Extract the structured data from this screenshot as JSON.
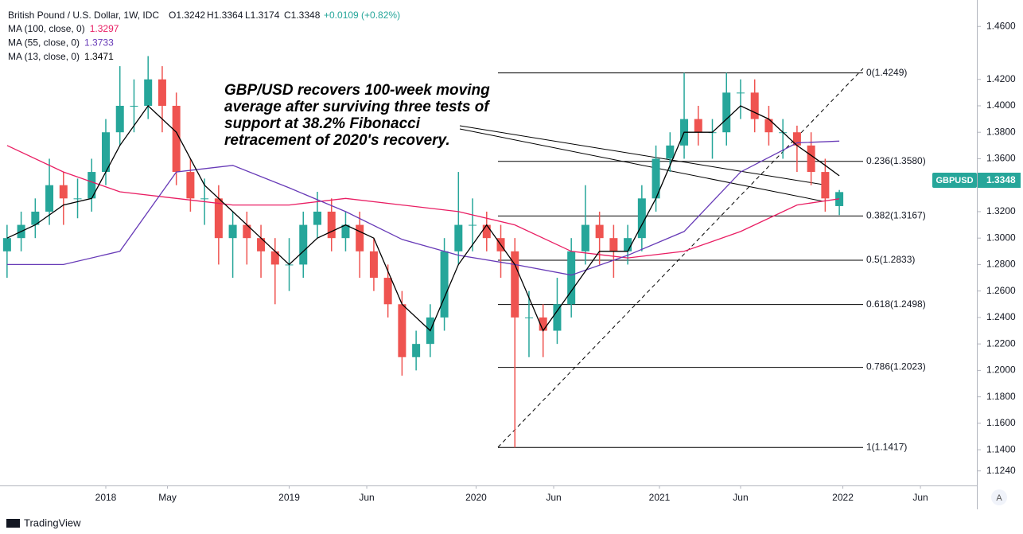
{
  "chart_data": {
    "type": "candlestick",
    "title": "British Pound / U.S. Dollar, 1W, IDC",
    "ohlc_legend": [
      "O1.3242",
      "H1.3364",
      "L1.3174",
      "C1.3348"
    ],
    "change": "+0.0109 (+0.82%)",
    "annotation": [
      "GBP/USD recovers 100-week moving",
      "average after surviving three tests of",
      "support at 38.2% Fibonacci",
      "retracement of 2020's recovery."
    ],
    "symbol_tag": {
      "symbol": "GBPUSD",
      "price": "1.3348"
    },
    "brand": "TradingView",
    "axis_button": "A",
    "up_color": "#26a69a",
    "down_color": "#ef5350",
    "xlim": [
      -2,
      275
    ],
    "ylim": [
      1.113,
      1.48
    ],
    "xticks": [
      {
        "value": 28,
        "label": "2018"
      },
      {
        "value": 45.5,
        "label": "May"
      },
      {
        "value": 80,
        "label": "2019"
      },
      {
        "value": 102,
        "label": "Jun"
      },
      {
        "value": 133,
        "label": "2020"
      },
      {
        "value": 155,
        "label": "Jun"
      },
      {
        "value": 185,
        "label": "2021"
      },
      {
        "value": 208,
        "label": "Jun"
      },
      {
        "value": 237,
        "label": "2022"
      },
      {
        "value": 259,
        "label": "Jun"
      }
    ],
    "yticks": [
      {
        "value": 1.46,
        "label": "1.4600"
      },
      {
        "value": 1.42,
        "label": "1.4200"
      },
      {
        "value": 1.4,
        "label": "1.4000"
      },
      {
        "value": 1.38,
        "label": "1.3800"
      },
      {
        "value": 1.36,
        "label": "1.3600"
      },
      {
        "value": 1.32,
        "label": "1.3200"
      },
      {
        "value": 1.3,
        "label": "1.3000"
      },
      {
        "value": 1.28,
        "label": "1.2800"
      },
      {
        "value": 1.26,
        "label": "1.2600"
      },
      {
        "value": 1.24,
        "label": "1.2400"
      },
      {
        "value": 1.22,
        "label": "1.2200"
      },
      {
        "value": 1.2,
        "label": "1.2000"
      },
      {
        "value": 1.18,
        "label": "1.1800"
      },
      {
        "value": 1.16,
        "label": "1.1600"
      },
      {
        "value": 1.14,
        "label": "1.1400"
      },
      {
        "value": 1.124,
        "label": "1.1240"
      }
    ],
    "x": [
      0,
      4,
      8,
      12,
      16,
      20,
      24,
      28,
      32,
      36,
      40,
      44,
      48,
      52,
      56,
      60,
      64,
      68,
      72,
      76,
      80,
      84,
      88,
      92,
      96,
      100,
      104,
      108,
      112,
      116,
      120,
      124,
      128,
      132,
      136,
      140,
      144,
      148,
      152,
      156,
      160,
      164,
      168,
      172,
      176,
      180,
      184,
      188,
      192,
      196,
      200,
      204,
      208,
      212,
      216,
      220,
      224,
      228,
      232,
      236
    ],
    "open": [
      1.29,
      1.3,
      1.31,
      1.32,
      1.34,
      1.33,
      1.33,
      1.35,
      1.38,
      1.4,
      1.4,
      1.42,
      1.4,
      1.35,
      1.33,
      1.33,
      1.3,
      1.31,
      1.3,
      1.29,
      1.28,
      1.28,
      1.31,
      1.32,
      1.3,
      1.31,
      1.29,
      1.27,
      1.25,
      1.21,
      1.22,
      1.24,
      1.29,
      1.31,
      1.31,
      1.3,
      1.29,
      1.24,
      1.24,
      1.23,
      1.25,
      1.29,
      1.31,
      1.3,
      1.29,
      1.3,
      1.33,
      1.36,
      1.37,
      1.39,
      1.38,
      1.38,
      1.41,
      1.41,
      1.39,
      1.38,
      1.38,
      1.37,
      1.35,
      1.3242
    ],
    "high": [
      1.31,
      1.32,
      1.33,
      1.36,
      1.35,
      1.345,
      1.36,
      1.39,
      1.43,
      1.42,
      1.4376,
      1.43,
      1.41,
      1.36,
      1.345,
      1.34,
      1.32,
      1.32,
      1.31,
      1.3,
      1.3,
      1.32,
      1.335,
      1.33,
      1.32,
      1.32,
      1.3,
      1.28,
      1.26,
      1.23,
      1.25,
      1.3,
      1.35,
      1.33,
      1.32,
      1.31,
      1.3,
      1.26,
      1.25,
      1.27,
      1.3,
      1.34,
      1.32,
      1.31,
      1.31,
      1.34,
      1.37,
      1.38,
      1.4249,
      1.4,
      1.39,
      1.4249,
      1.42,
      1.42,
      1.4,
      1.39,
      1.385,
      1.38,
      1.36,
      1.3364
    ],
    "low": [
      1.27,
      1.29,
      1.3,
      1.31,
      1.31,
      1.315,
      1.32,
      1.34,
      1.37,
      1.38,
      1.39,
      1.38,
      1.34,
      1.32,
      1.31,
      1.28,
      1.27,
      1.28,
      1.27,
      1.25,
      1.26,
      1.27,
      1.3,
      1.29,
      1.29,
      1.27,
      1.26,
      1.24,
      1.196,
      1.2,
      1.21,
      1.23,
      1.28,
      1.29,
      1.29,
      1.27,
      1.1417,
      1.21,
      1.21,
      1.22,
      1.24,
      1.28,
      1.28,
      1.27,
      1.28,
      1.29,
      1.32,
      1.35,
      1.36,
      1.37,
      1.36,
      1.37,
      1.39,
      1.38,
      1.37,
      1.36,
      1.35,
      1.34,
      1.32,
      1.3174
    ],
    "close": [
      1.3,
      1.31,
      1.32,
      1.34,
      1.33,
      1.33,
      1.35,
      1.38,
      1.4,
      1.4,
      1.42,
      1.4,
      1.35,
      1.33,
      1.33,
      1.3,
      1.31,
      1.3,
      1.29,
      1.28,
      1.28,
      1.31,
      1.32,
      1.3,
      1.31,
      1.29,
      1.27,
      1.25,
      1.21,
      1.22,
      1.24,
      1.29,
      1.31,
      1.31,
      1.3,
      1.29,
      1.24,
      1.24,
      1.23,
      1.25,
      1.29,
      1.31,
      1.3,
      1.29,
      1.3,
      1.33,
      1.36,
      1.37,
      1.39,
      1.38,
      1.38,
      1.41,
      1.41,
      1.39,
      1.38,
      1.38,
      1.37,
      1.35,
      1.33,
      1.3348
    ],
    "series": [
      {
        "name": "MA (100, close, 0)",
        "last_label": "1.3297",
        "color": "#e91e63",
        "x": [
          0,
          16,
          32,
          48,
          64,
          80,
          96,
          112,
          128,
          144,
          160,
          176,
          192,
          208,
          224,
          236
        ],
        "values": [
          1.37,
          1.35,
          1.335,
          1.33,
          1.325,
          1.325,
          1.33,
          1.325,
          1.32,
          1.31,
          1.29,
          1.285,
          1.29,
          1.305,
          1.325,
          1.3297
        ]
      },
      {
        "name": "MA (55, close, 0)",
        "last_label": "1.3733",
        "color": "#673ab7",
        "x": [
          0,
          16,
          32,
          48,
          64,
          80,
          96,
          112,
          128,
          144,
          160,
          176,
          192,
          208,
          224,
          236
        ],
        "values": [
          1.28,
          1.28,
          1.29,
          1.35,
          1.355,
          1.338,
          1.32,
          1.299,
          1.287,
          1.28,
          1.272,
          1.287,
          1.305,
          1.35,
          1.372,
          1.3733
        ]
      },
      {
        "name": "MA (13, close, 0)",
        "last_label": "1.3471",
        "color": "#000000",
        "x": [
          0,
          8,
          16,
          24,
          32,
          40,
          48,
          56,
          64,
          72,
          80,
          88,
          96,
          104,
          112,
          120,
          128,
          136,
          144,
          152,
          160,
          168,
          176,
          184,
          192,
          200,
          208,
          216,
          224,
          232,
          236
        ],
        "values": [
          1.3,
          1.31,
          1.325,
          1.33,
          1.37,
          1.4,
          1.38,
          1.34,
          1.32,
          1.3,
          1.28,
          1.3,
          1.31,
          1.3,
          1.25,
          1.23,
          1.28,
          1.31,
          1.28,
          1.23,
          1.26,
          1.29,
          1.29,
          1.33,
          1.38,
          1.38,
          1.4,
          1.39,
          1.37,
          1.355,
          1.3471
        ]
      }
    ],
    "fibonacci": [
      {
        "label": "0(1.4249)",
        "value": 1.4249
      },
      {
        "label": "0.236(1.3580)",
        "value": 1.358
      },
      {
        "label": "0.382(1.3167)",
        "value": 1.3167
      },
      {
        "label": "0.5(1.2833)",
        "value": 1.2833
      },
      {
        "label": "0.618(1.2498)",
        "value": 1.2498
      },
      {
        "label": "0.786(1.2023)",
        "value": 1.2023
      },
      {
        "label": "1(1.1417)",
        "value": 1.1417
      }
    ]
  }
}
